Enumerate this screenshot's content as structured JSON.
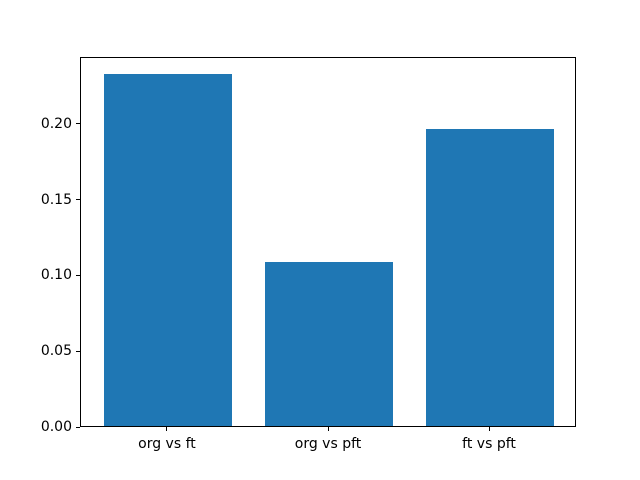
{
  "figure": {
    "background": "#ffffff"
  },
  "chart_data": {
    "type": "bar",
    "categories": [
      "org vs ft",
      "org vs pft",
      "ft vs pft"
    ],
    "values": [
      0.232,
      0.108,
      0.196
    ],
    "title": "",
    "xlabel": "",
    "ylabel": "",
    "xlim": [
      -0.54,
      2.54
    ],
    "ylim": [
      0,
      0.2436
    ],
    "yticks": [
      "0.00",
      "0.05",
      "0.10",
      "0.15",
      "0.20"
    ],
    "ytick_values": [
      0.0,
      0.05,
      0.1,
      0.15,
      0.2
    ],
    "bar_width_units": 0.8,
    "bar_color": "#1f77b4",
    "axis_color": "#000000",
    "text_color": "#000000",
    "grid": false,
    "legend": null
  }
}
